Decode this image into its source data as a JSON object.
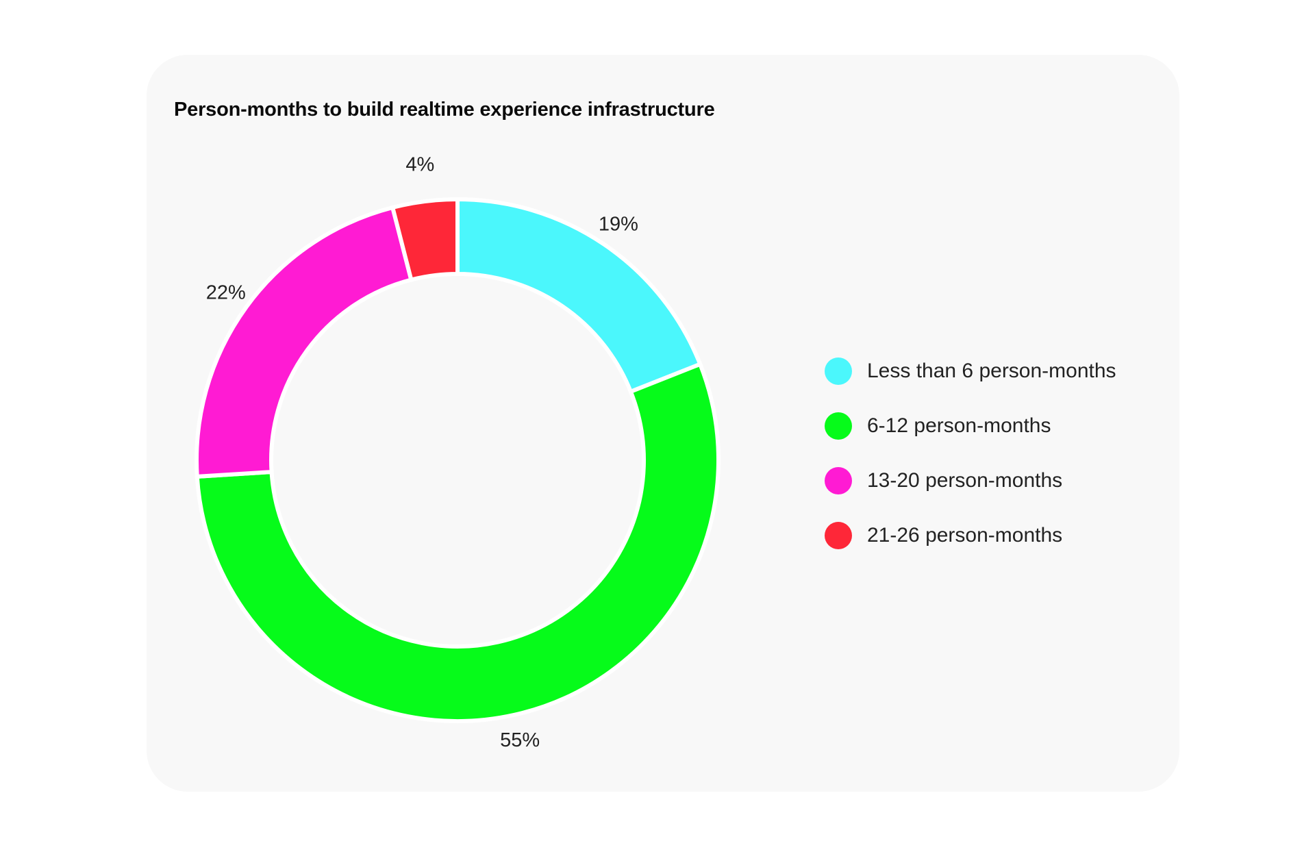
{
  "chart_data": {
    "type": "pie",
    "title": "Person-months to build realtime experience infrastructure",
    "categories": [
      "Less than 6 person-months",
      "6-12 person-months",
      "13-20 person-months",
      "21-26 person-months"
    ],
    "values": [
      19,
      55,
      22,
      4
    ],
    "value_labels": [
      "19%",
      "55%",
      "22%",
      "4%"
    ],
    "colors": [
      "#4bf7fc",
      "#06fb1a",
      "#ff1bd3",
      "#fe2738"
    ],
    "style": "donut",
    "legend_position": "right"
  }
}
